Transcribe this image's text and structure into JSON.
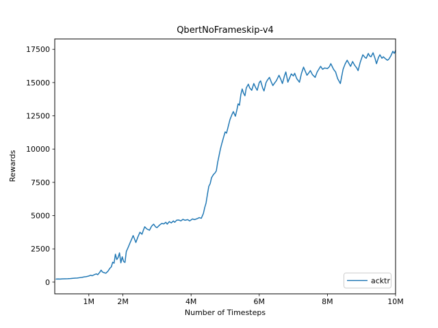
{
  "window": {
    "background": "#ffffff"
  },
  "chart_data": {
    "type": "line",
    "title": "QbertNoFrameskip-v4",
    "xlabel": "Number of Timesteps",
    "ylabel": "Rewards",
    "x_units": "millions of timesteps",
    "xlim": [
      0,
      10
    ],
    "ylim": [
      -880,
      18280
    ],
    "grid": false,
    "legend_position": "lower right",
    "xticks": [
      {
        "v": 1,
        "label": "1M"
      },
      {
        "v": 2,
        "label": "2M"
      },
      {
        "v": 4,
        "label": "4M"
      },
      {
        "v": 6,
        "label": "6M"
      },
      {
        "v": 8,
        "label": "8M"
      },
      {
        "v": 10,
        "label": "10M"
      }
    ],
    "yticks": [
      {
        "v": 0,
        "label": "0"
      },
      {
        "v": 2500,
        "label": "2500"
      },
      {
        "v": 5000,
        "label": "5000"
      },
      {
        "v": 7500,
        "label": "7500"
      },
      {
        "v": 10000,
        "label": "10000"
      },
      {
        "v": 12500,
        "label": "12500"
      },
      {
        "v": 15000,
        "label": "15000"
      },
      {
        "v": 17500,
        "label": "17500"
      }
    ],
    "series": [
      {
        "name": "acktr",
        "color": "#1f77b4",
        "x": [
          0.04,
          0.1,
          0.16,
          0.22,
          0.3,
          0.38,
          0.46,
          0.54,
          0.6,
          0.66,
          0.72,
          0.8,
          0.86,
          0.92,
          1.0,
          1.05,
          1.1,
          1.16,
          1.22,
          1.26,
          1.32,
          1.36,
          1.4,
          1.46,
          1.5,
          1.56,
          1.62,
          1.66,
          1.7,
          1.74,
          1.78,
          1.82,
          1.86,
          1.9,
          1.94,
          1.98,
          2.02,
          2.06,
          2.1,
          2.16,
          2.2,
          2.26,
          2.3,
          2.34,
          2.38,
          2.44,
          2.5,
          2.56,
          2.6,
          2.64,
          2.7,
          2.78,
          2.84,
          2.9,
          2.96,
          3.0,
          3.08,
          3.14,
          3.2,
          3.26,
          3.3,
          3.36,
          3.42,
          3.48,
          3.52,
          3.58,
          3.64,
          3.7,
          3.76,
          3.82,
          3.9,
          3.96,
          4.04,
          4.1,
          4.18,
          4.24,
          4.3,
          4.36,
          4.4,
          4.44,
          4.48,
          4.52,
          4.56,
          4.6,
          4.66,
          4.7,
          4.74,
          4.78,
          4.82,
          4.86,
          4.9,
          4.96,
          5.0,
          5.04,
          5.08,
          5.14,
          5.2,
          5.24,
          5.3,
          5.34,
          5.38,
          5.42,
          5.46,
          5.5,
          5.54,
          5.58,
          5.62,
          5.68,
          5.72,
          5.78,
          5.84,
          5.9,
          5.94,
          6.0,
          6.04,
          6.1,
          6.14,
          6.2,
          6.24,
          6.3,
          6.36,
          6.4,
          6.46,
          6.5,
          6.58,
          6.64,
          6.68,
          6.74,
          6.78,
          6.84,
          6.9,
          6.94,
          7.0,
          7.04,
          7.1,
          7.18,
          7.24,
          7.3,
          7.36,
          7.4,
          7.46,
          7.5,
          7.56,
          7.64,
          7.7,
          7.8,
          7.86,
          7.92,
          8.0,
          8.06,
          8.1,
          8.18,
          8.24,
          8.3,
          8.38,
          8.46,
          8.52,
          8.58,
          8.64,
          8.68,
          8.74,
          8.8,
          8.86,
          8.9,
          8.96,
          9.04,
          9.1,
          9.14,
          9.2,
          9.24,
          9.28,
          9.34,
          9.4,
          9.44,
          9.5,
          9.54,
          9.6,
          9.64,
          9.7,
          9.76,
          9.8,
          9.86,
          9.92,
          9.96,
          10.0
        ],
        "y": [
          230,
          235,
          230,
          245,
          250,
          255,
          270,
          290,
          300,
          310,
          330,
          360,
          390,
          410,
          460,
          520,
          480,
          560,
          620,
          560,
          740,
          900,
          760,
          700,
          670,
          820,
          1050,
          1150,
          1500,
          1420,
          2100,
          1700,
          1850,
          2200,
          1450,
          1900,
          1550,
          1480,
          2300,
          2650,
          2900,
          3250,
          3500,
          3250,
          2980,
          3400,
          3750,
          3600,
          3900,
          4160,
          4000,
          3900,
          4200,
          4360,
          4150,
          4100,
          4300,
          4410,
          4380,
          4500,
          4360,
          4550,
          4450,
          4600,
          4500,
          4660,
          4670,
          4600,
          4720,
          4650,
          4700,
          4600,
          4750,
          4700,
          4770,
          4850,
          4800,
          5150,
          5600,
          5950,
          6600,
          7200,
          7400,
          7850,
          8100,
          8200,
          8360,
          9000,
          9500,
          10000,
          10400,
          10950,
          11290,
          11200,
          11600,
          12210,
          12600,
          12820,
          12470,
          12900,
          13400,
          13300,
          14100,
          14520,
          14200,
          14010,
          14600,
          14880,
          14600,
          14420,
          14930,
          14600,
          14420,
          15000,
          15130,
          14600,
          14370,
          15000,
          15190,
          15390,
          15000,
          14780,
          15000,
          15130,
          15550,
          15200,
          14930,
          15500,
          15800,
          15030,
          15400,
          15650,
          15500,
          15700,
          15300,
          15030,
          15700,
          16160,
          15800,
          15550,
          15750,
          15900,
          15600,
          15390,
          15800,
          16220,
          16000,
          16100,
          16050,
          16200,
          16420,
          16000,
          15800,
          15300,
          14930,
          16000,
          16400,
          16680,
          16400,
          16220,
          16580,
          16300,
          16100,
          15900,
          16500,
          17090,
          16900,
          16830,
          17190,
          17000,
          16940,
          17240,
          16800,
          16420,
          16900,
          17090,
          16830,
          16940,
          16800,
          16680,
          16750,
          17000,
          17350,
          17200,
          17400
        ]
      }
    ]
  }
}
